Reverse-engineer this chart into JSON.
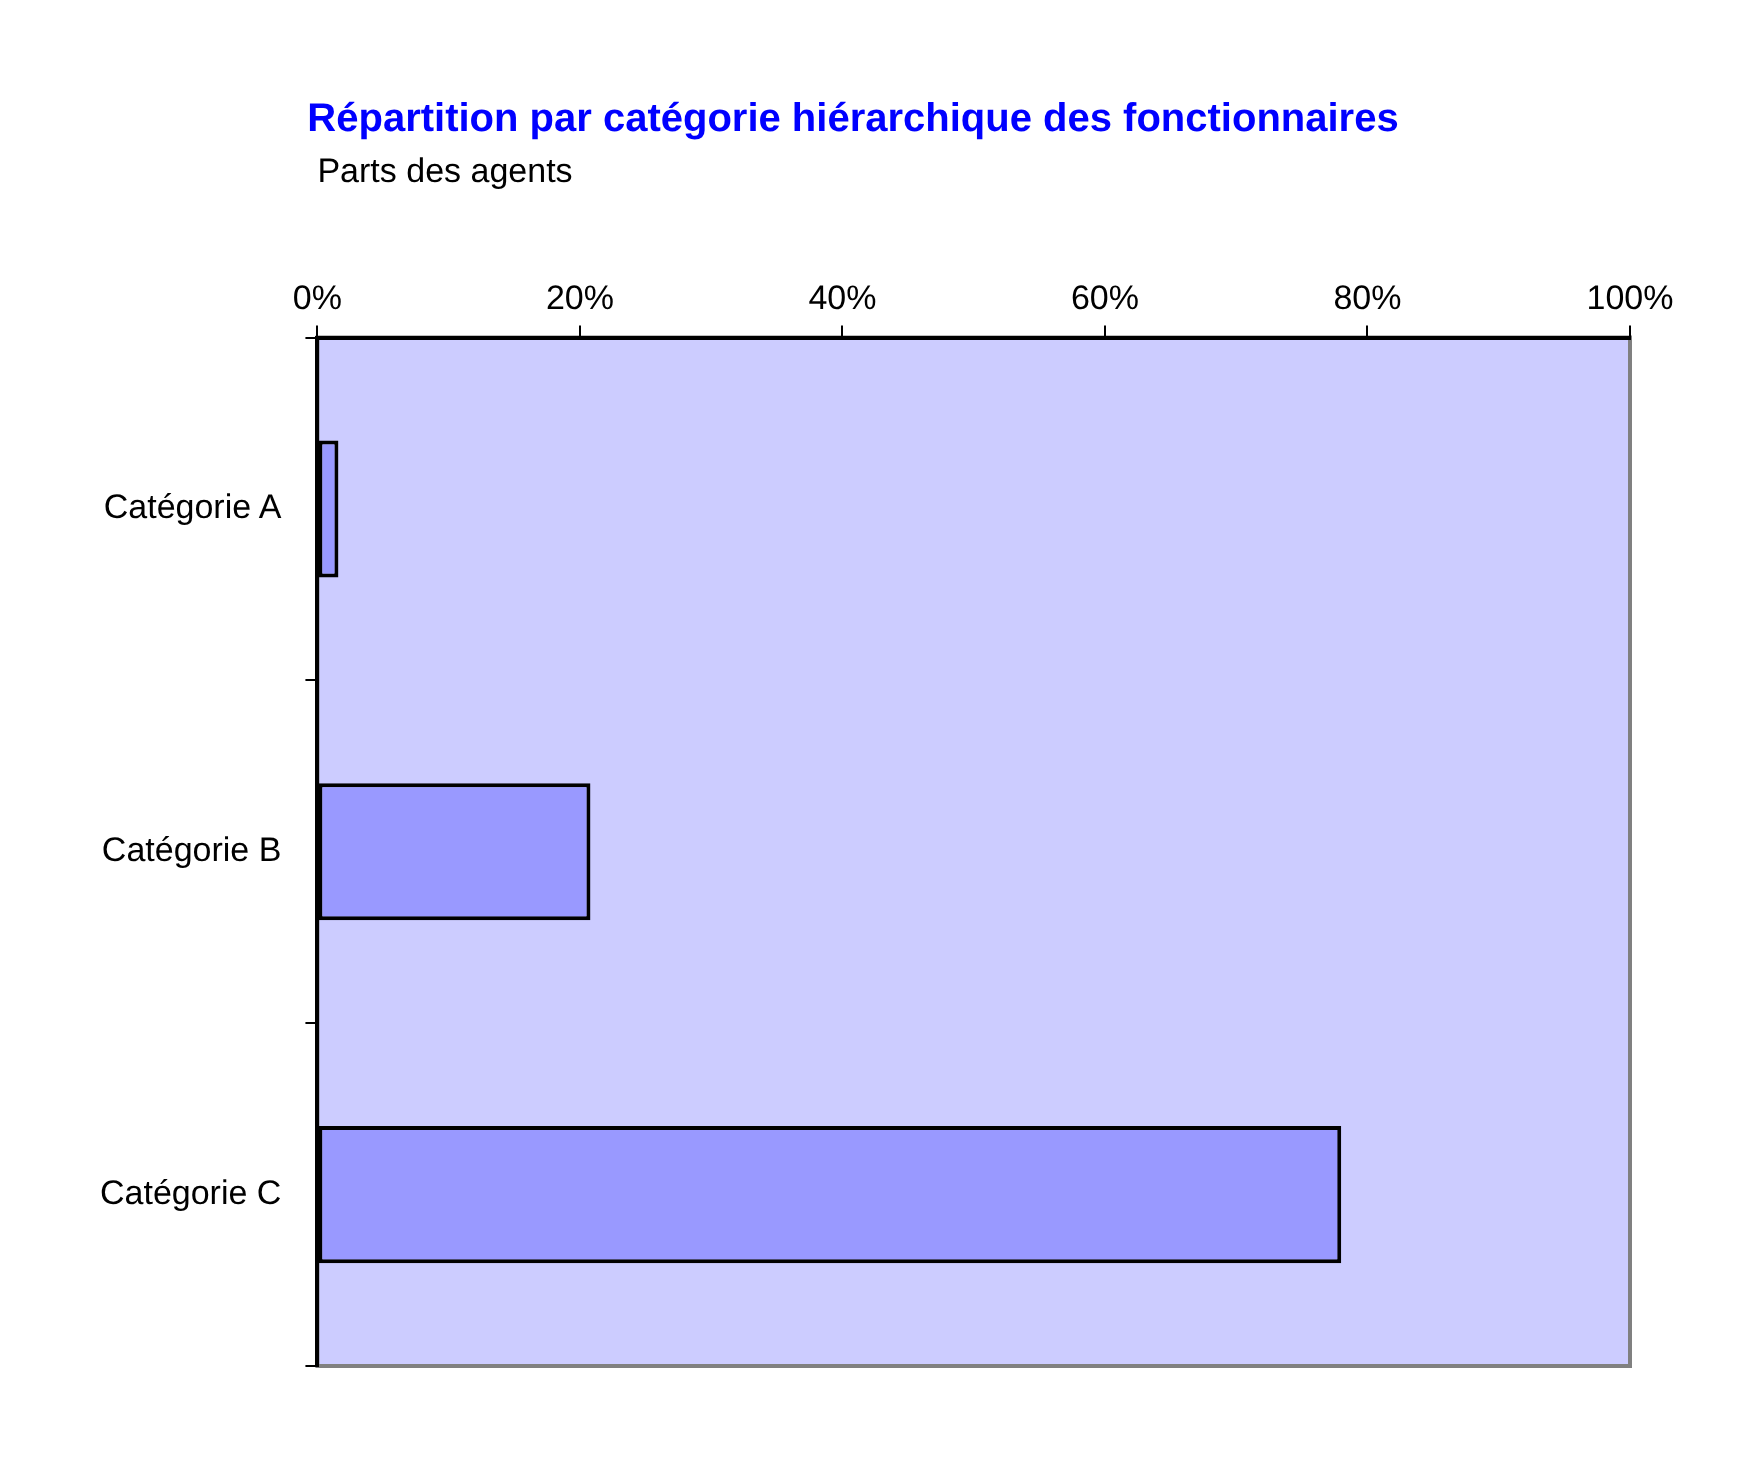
{
  "chart_data": {
    "type": "bar",
    "orientation": "horizontal",
    "title": "Répartition par catégorie hiérarchique des fonctionnaires",
    "xlabel": "Parts des agents",
    "categories": [
      "Catégorie A",
      "Catégorie B",
      "Catégorie C"
    ],
    "values": [
      1.6,
      20.8,
      78
    ],
    "color": "#9999ff",
    "xlim": [
      0,
      100
    ],
    "xticks": [
      {
        "value": 0,
        "label": "0%"
      },
      {
        "value": 20,
        "label": "20%"
      },
      {
        "value": 40,
        "label": "40%"
      },
      {
        "value": 60,
        "label": "60%"
      },
      {
        "value": 80,
        "label": "80%"
      },
      {
        "value": 100,
        "label": "100%"
      }
    ],
    "grid": false,
    "legend": false
  }
}
